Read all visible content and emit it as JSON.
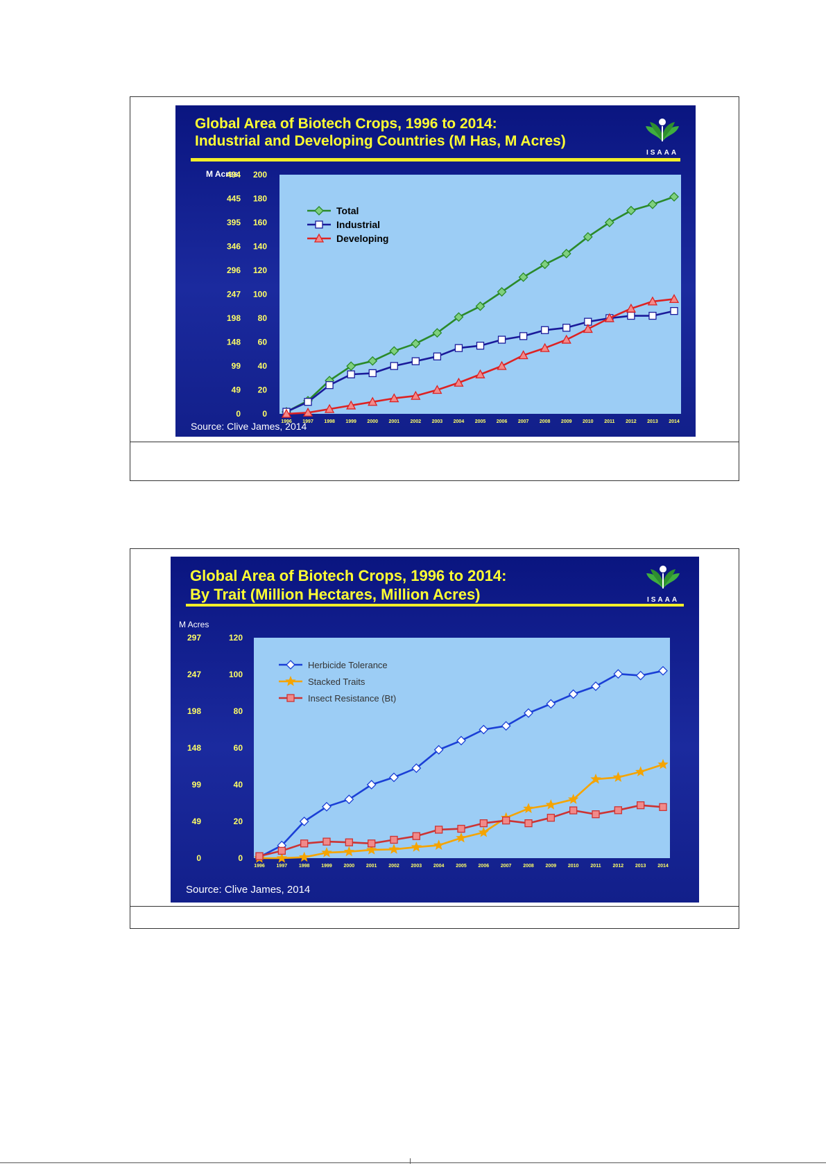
{
  "charts": [
    {
      "title": "Global Area of Biotech Crops, 1996 to 2014:\nIndustrial and Developing Countries (M Has, M Acres)",
      "logo_text": "ISAAA",
      "acres_label": "M Acres",
      "source": "Source: Clive James, 2014"
    },
    {
      "title": "Global Area of Biotech Crops, 1996 to 2014:\nBy Trait (Million Hectares, Million Acres)",
      "logo_text": "ISAAA",
      "acres_label": "M Acres",
      "source": "Source: Clive James, 2014"
    }
  ],
  "colors": {
    "slide_bg": "#12208c",
    "plot_bg": "#9ccdf5",
    "title": "#ffff33",
    "rule": "#f2ee2a",
    "total": "#2a8a2a",
    "total_marker": "#7fd07f",
    "industrial": "#1a1a9a",
    "developing": "#dd2222",
    "developing_marker": "#f28a8a",
    "herbicide": "#1a3fd6",
    "stacked": "#f5a400",
    "insect": "#cc3333",
    "insect_marker": "#f08a8a"
  },
  "chart_data": [
    {
      "type": "line",
      "title": "Global Area of Biotech Crops, 1996 to 2014: Industrial and Developing Countries (M Has, M Acres)",
      "x": [
        "1996",
        "1997",
        "1998",
        "1999",
        "2000",
        "2001",
        "2002",
        "2003",
        "2004",
        "2005",
        "2006",
        "2007",
        "2008",
        "2009",
        "2010",
        "2011",
        "2012",
        "2013",
        "2014"
      ],
      "ylim": [
        0,
        200
      ],
      "yticks": [
        0,
        20,
        40,
        60,
        80,
        100,
        120,
        140,
        160,
        180,
        200
      ],
      "yticks_acres": [
        "0",
        "49",
        "99",
        "148",
        "198",
        "247",
        "296",
        "346",
        "395",
        "445",
        "494"
      ],
      "legend_position": "top-left",
      "series": [
        {
          "name": "Total",
          "marker": "diamond",
          "values": [
            1.7,
            11,
            27.8,
            39.9,
            44.2,
            52.6,
            58.7,
            67.7,
            81,
            90,
            102,
            114.3,
            125,
            134,
            148,
            160,
            170,
            175.2,
            181.5
          ]
        },
        {
          "name": "Industrial",
          "marker": "square",
          "values": [
            1.7,
            10,
            24,
            33,
            34,
            40,
            44,
            48,
            55,
            57,
            62,
            65,
            70,
            72,
            77,
            80,
            82,
            82,
            86
          ]
        },
        {
          "name": "Developing",
          "marker": "triangle",
          "values": [
            0,
            1,
            4,
            7,
            10,
            13,
            15,
            20,
            26,
            33,
            40,
            49,
            55,
            62,
            71,
            80,
            88,
            94,
            96
          ]
        }
      ]
    },
    {
      "type": "line",
      "title": "Global Area of Biotech Crops, 1996 to 2014: By Trait (Million Hectares, Million Acres)",
      "x": [
        "1996",
        "1997",
        "1998",
        "1999",
        "2000",
        "2001",
        "2002",
        "2003",
        "2004",
        "2005",
        "2006",
        "2007",
        "2008",
        "2009",
        "2010",
        "2011",
        "2012",
        "2013",
        "2014"
      ],
      "ylim": [
        0,
        120
      ],
      "yticks": [
        0,
        20,
        40,
        60,
        80,
        100,
        120
      ],
      "yticks_acres": [
        "0",
        "49",
        "99",
        "148",
        "198",
        "247",
        "297"
      ],
      "legend_position": "top-left",
      "series": [
        {
          "name": "Herbicide Tolerance",
          "marker": "diamond",
          "values": [
            0.6,
            6.9,
            20,
            28,
            32,
            40,
            44,
            49,
            59,
            64,
            70,
            72,
            79,
            84,
            89.3,
            93.6,
            100.3,
            99.4,
            102
          ]
        },
        {
          "name": "Stacked Traits",
          "marker": "star",
          "values": [
            0,
            0,
            0.5,
            3,
            3.5,
            4.5,
            4.8,
            6,
            7,
            11,
            14,
            22,
            27,
            29,
            32,
            43,
            44,
            47,
            51
          ]
        },
        {
          "name": "Insect Resistance (Bt)",
          "marker": "square",
          "values": [
            1.1,
            4,
            8,
            9,
            8.6,
            8,
            10,
            12,
            15.5,
            16,
            19,
            20.5,
            19,
            22,
            26,
            23.9,
            26.1,
            28.8,
            27.8
          ]
        }
      ]
    }
  ]
}
